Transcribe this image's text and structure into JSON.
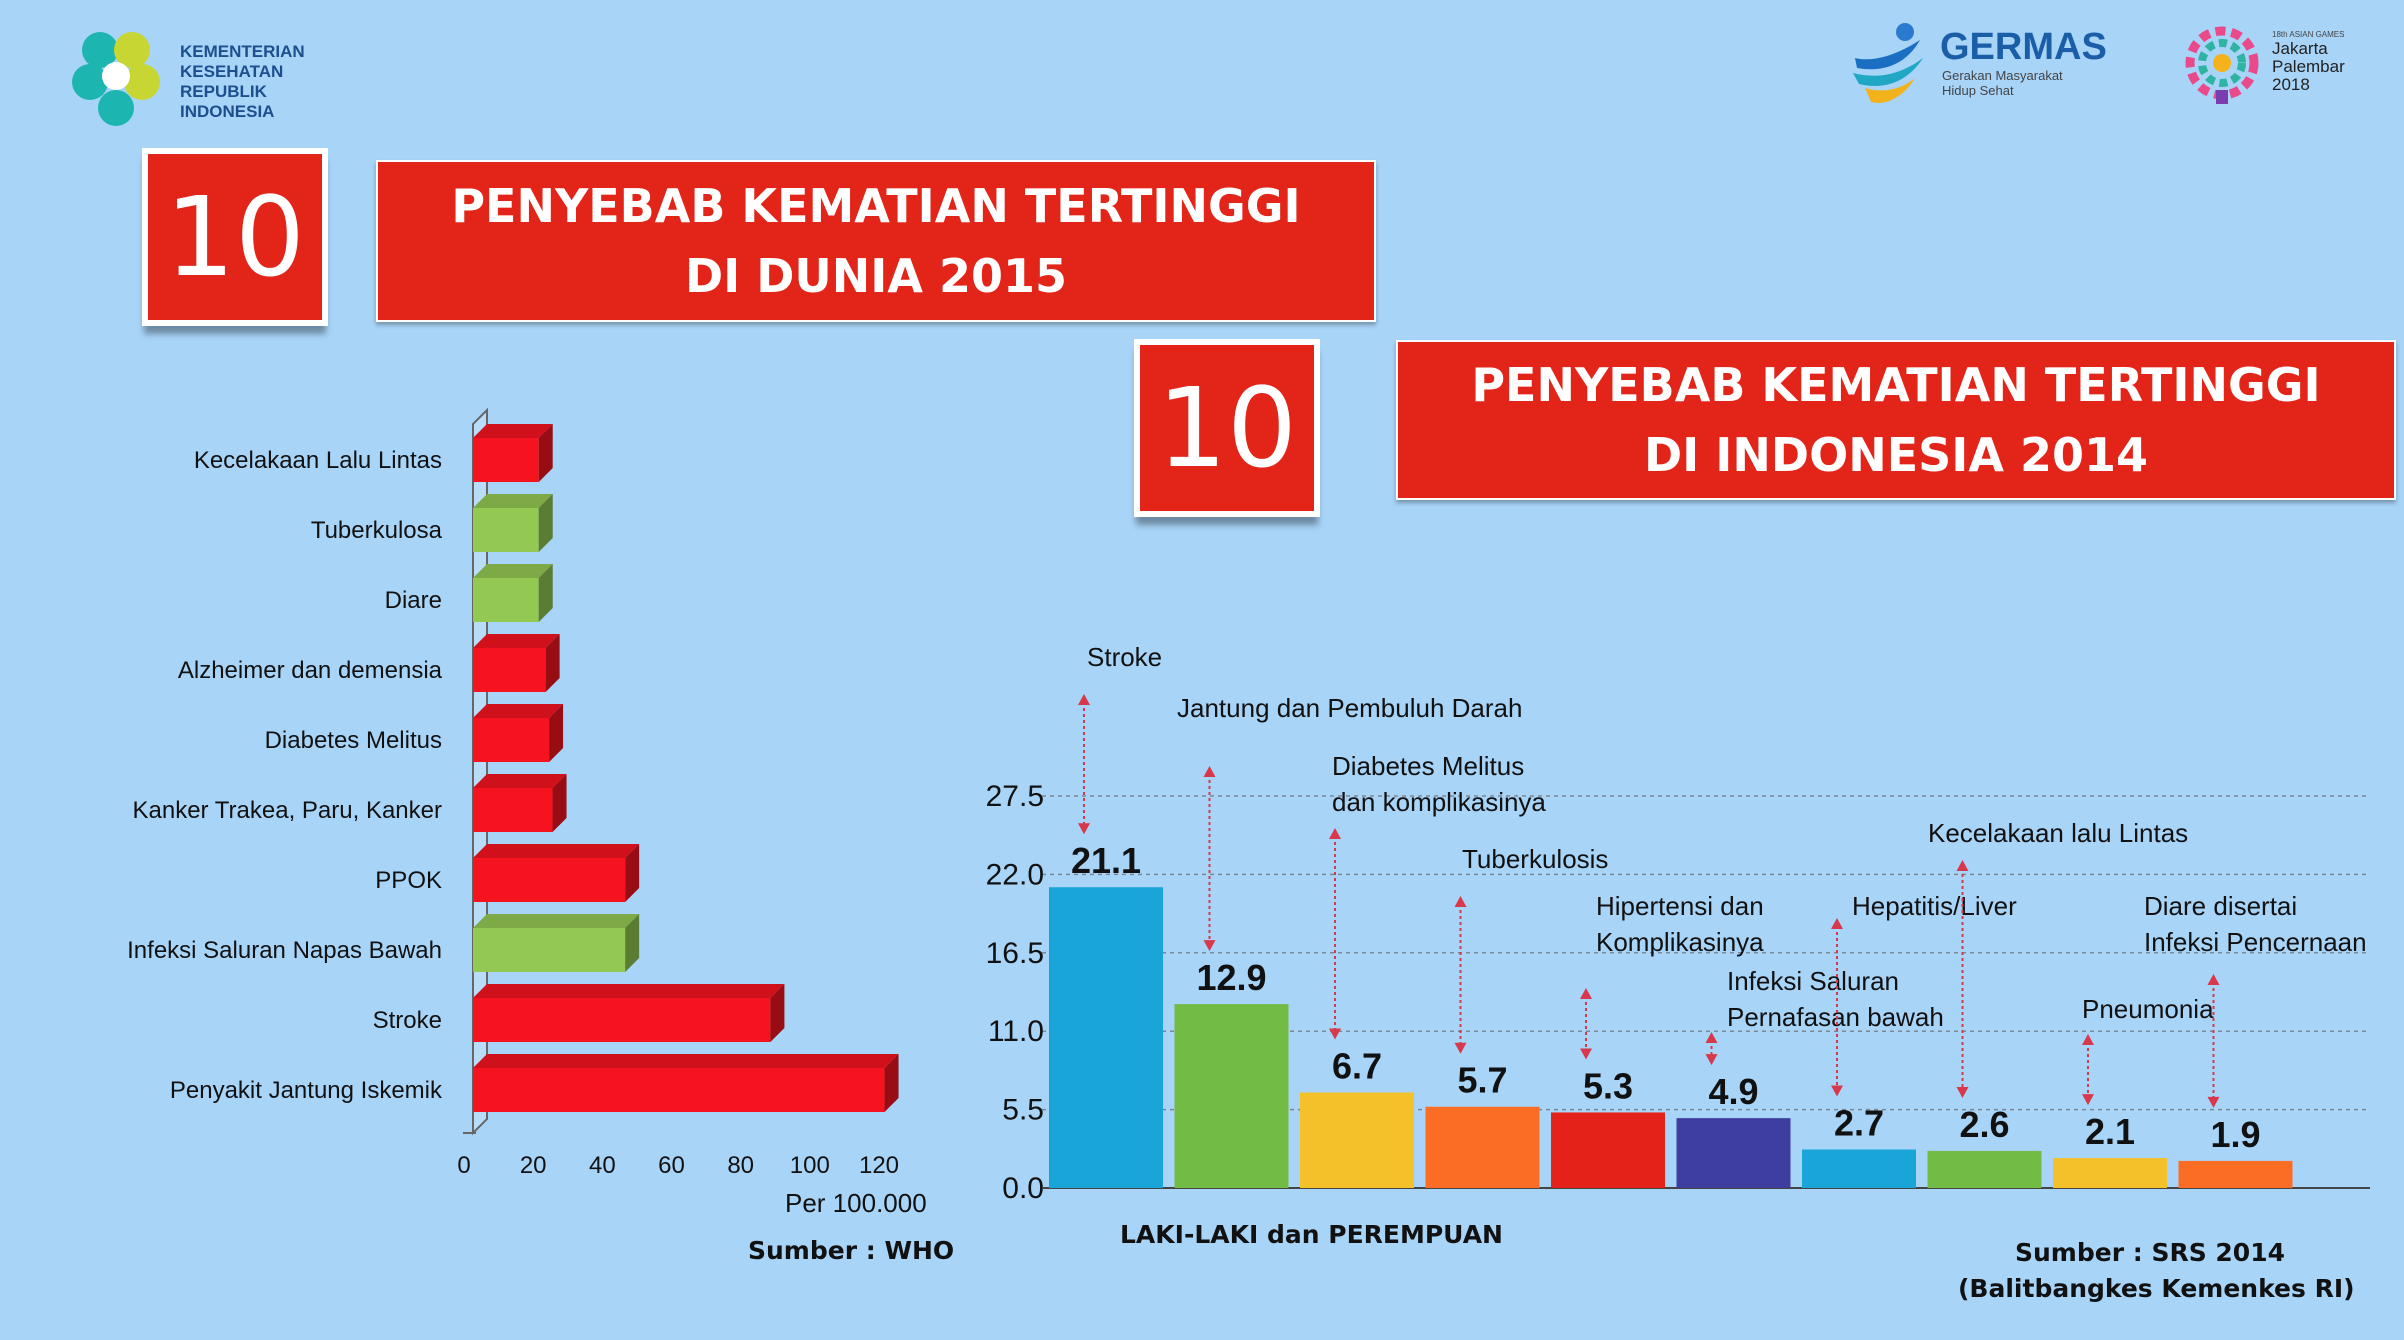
{
  "logos": {
    "kemenkes": [
      "KEMENTERIAN",
      "KESEHATAN",
      "REPUBLIK",
      "INDONESIA"
    ],
    "germas_title": "GERMAS",
    "germas_sub": [
      "Gerakan Masyarakat",
      "Hidup Sehat"
    ],
    "asian_games_small": "18th ASIAN GAMES",
    "asian_games": [
      "Jakarta",
      "Palembar",
      "2018"
    ]
  },
  "colors": {
    "banner": "#e32418",
    "background": "#a8d4f8"
  },
  "world": {
    "number": "10",
    "title_line1": "PENYEBAB KEMATIAN TERTINGGI",
    "title_line2": "DI DUNIA 2015",
    "unit": "Per 100.000",
    "source": "Sumber : WHO"
  },
  "indonesia": {
    "number": "10",
    "title_line1": "PENYEBAB KEMATIAN TERTINGGI",
    "title_line2": "DI INDONESIA 2014",
    "subtitle": "LAKI-LAKI dan PEREMPUAN",
    "source_line1": "Sumber : SRS 2014",
    "source_line2": "(Balitbangkes Kemenkes RI)"
  },
  "chart_data": [
    {
      "type": "bar",
      "orientation": "horizontal",
      "categories": [
        "Kecelakaan Lalu Lintas",
        "Tuberkulosa",
        "Diare",
        "Alzheimer dan demensia",
        "Diabetes Melitus",
        "Kanker Trakea, Paru, Kanker",
        "PPOK",
        "Infeksi Saluran Napas Bawah",
        "Stroke",
        "Penyakit Jantung Iskemik"
      ],
      "values": [
        19,
        19,
        19,
        21,
        22,
        23,
        44,
        44,
        86,
        119
      ],
      "colors": [
        "#f5131f",
        "#93c853",
        "#93c853",
        "#f5131f",
        "#f5131f",
        "#f5131f",
        "#f5131f",
        "#93c853",
        "#f5131f",
        "#f5131f"
      ],
      "xticks": [
        "0",
        "20",
        "40",
        "60",
        "80",
        "100",
        "120"
      ],
      "xlim": [
        0,
        120
      ],
      "xlabel": "Per 100.000"
    },
    {
      "type": "bar",
      "categories": [
        "Stroke",
        "Jantung dan Pembuluh Darah",
        "Diabetes Melitus dan komplikasinya",
        "Tuberkulosis",
        "Hipertensi dan Komplikasinya",
        "Infeksi Saluran Pernafasan bawah",
        "Hepatitis/Liver",
        "Kecelakaan lalu Lintas",
        "Pneumonia",
        "Diare disertai Infeksi Pencernaan"
      ],
      "label_lines": [
        [
          "Stroke"
        ],
        [
          "Jantung dan Pembuluh Darah"
        ],
        [
          "Diabetes Melitus",
          "dan komplikasinya"
        ],
        [
          "Tuberkulosis"
        ],
        [
          "Hipertensi dan",
          "Komplikasinya"
        ],
        [
          "Infeksi Saluran",
          "Pernafasan bawah"
        ],
        [
          "Hepatitis/Liver"
        ],
        [
          "Kecelakaan lalu Lintas"
        ],
        [
          "Pneumonia"
        ],
        [
          "Diare disertai",
          "Infeksi Pencernaan"
        ]
      ],
      "values": [
        21.1,
        12.9,
        6.7,
        5.7,
        5.3,
        4.9,
        2.7,
        2.6,
        2.1,
        1.9
      ],
      "value_labels": [
        "21.1",
        "12.9",
        "6.7",
        "5.7",
        "5.3",
        "4.9",
        "2.7",
        "2.6",
        "2.1",
        "1.9"
      ],
      "colors": [
        "#1aa5d8",
        "#72bb45",
        "#f5c12a",
        "#fb6c24",
        "#e5221a",
        "#3e3ea0",
        "#1aa5d8",
        "#72bb45",
        "#f5c12a",
        "#fb6c24"
      ],
      "yticks": [
        "0.0",
        "5.5",
        "11.0",
        "16.5",
        "22.0",
        "27.5"
      ],
      "ylim": [
        0,
        27.5
      ],
      "grid": true
    }
  ]
}
